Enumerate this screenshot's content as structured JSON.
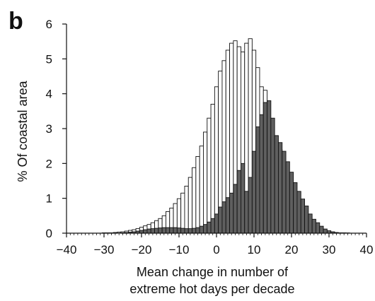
{
  "panel_label": "b",
  "chart_data": {
    "type": "bar",
    "title": "",
    "xlabel_line1": "Mean change in number of",
    "xlabel_line2": "extreme hot days per decade",
    "ylabel": "% Of coastal area",
    "xlim": [
      -40,
      40
    ],
    "ylim": [
      0,
      6
    ],
    "bin_width": 1,
    "x_ticks": [
      -40,
      -30,
      -20,
      -10,
      0,
      10,
      20,
      30,
      40
    ],
    "x_tick_labels": [
      "−40",
      "−30",
      "−20",
      "−10",
      "0",
      "10",
      "20",
      "30",
      "40"
    ],
    "y_ticks": [
      0,
      1,
      2,
      3,
      4,
      5,
      6
    ],
    "y_tick_labels": [
      "0",
      "1",
      "2",
      "3",
      "4",
      "5",
      "6"
    ],
    "colors": {
      "open": "#ffffff",
      "filled": "#5f5f5f",
      "stroke": "#111111"
    },
    "series": [
      {
        "style": "open",
        "x": [
          -30,
          -29,
          -28,
          -27,
          -26,
          -25,
          -24,
          -23,
          -22,
          -21,
          -20,
          -19,
          -18,
          -17,
          -16,
          -15,
          -14,
          -13,
          -12,
          -11,
          -10,
          -9,
          -8,
          -7,
          -6,
          -5,
          -4,
          -3,
          -2,
          -1,
          0,
          1,
          2,
          3,
          4,
          5,
          6,
          7,
          8,
          9,
          10,
          11,
          12,
          13,
          14,
          15,
          16,
          17,
          18,
          19,
          20,
          21,
          22,
          23,
          24,
          25,
          26,
          27,
          28,
          29,
          30,
          31,
          32,
          33,
          34,
          35
        ],
        "values": [
          0.01,
          0.01,
          0.01,
          0.02,
          0.03,
          0.04,
          0.06,
          0.08,
          0.1,
          0.13,
          0.17,
          0.21,
          0.25,
          0.3,
          0.36,
          0.42,
          0.5,
          0.62,
          0.72,
          0.85,
          0.99,
          1.15,
          1.35,
          1.6,
          1.88,
          2.2,
          2.5,
          2.9,
          3.3,
          3.7,
          4.2,
          4.65,
          4.95,
          5.25,
          5.45,
          5.52,
          5.35,
          5.2,
          5.45,
          5.58,
          5.25,
          4.75,
          4.2,
          4.1,
          3.3,
          2.8,
          2.6,
          2.4,
          2.05,
          1.75,
          1.45,
          1.2,
          0.98,
          0.78,
          0.55,
          0.4,
          0.3,
          0.2,
          0.12,
          0.07,
          0.04,
          0.02,
          0.01,
          0.01,
          0.005,
          0.005
        ]
      },
      {
        "style": "filled",
        "x": [
          -25,
          -24,
          -23,
          -22,
          -21,
          -20,
          -19,
          -18,
          -17,
          -16,
          -15,
          -14,
          -13,
          -12,
          -11,
          -10,
          -9,
          -8,
          -7,
          -6,
          -5,
          -4,
          -3,
          -2,
          -1,
          0,
          1,
          2,
          3,
          4,
          5,
          6,
          7,
          8,
          9,
          10,
          11,
          12,
          13,
          14,
          15,
          16,
          17,
          18,
          19,
          20,
          21,
          22,
          23,
          24,
          25,
          26,
          27,
          28,
          29,
          30,
          31,
          32,
          33,
          34,
          35
        ],
        "values": [
          0.01,
          0.02,
          0.03,
          0.04,
          0.06,
          0.08,
          0.1,
          0.12,
          0.13,
          0.14,
          0.15,
          0.16,
          0.16,
          0.16,
          0.16,
          0.15,
          0.14,
          0.13,
          0.13,
          0.14,
          0.16,
          0.2,
          0.25,
          0.32,
          0.42,
          0.55,
          0.75,
          0.9,
          1.02,
          1.15,
          1.4,
          1.8,
          2.0,
          1.2,
          1.6,
          2.35,
          3.05,
          3.4,
          3.75,
          3.8,
          3.3,
          2.8,
          2.6,
          2.35,
          2.05,
          1.75,
          1.45,
          1.2,
          0.98,
          0.78,
          0.55,
          0.4,
          0.3,
          0.2,
          0.12,
          0.07,
          0.04,
          0.02,
          0.01,
          0.01,
          0.005
        ]
      }
    ]
  }
}
